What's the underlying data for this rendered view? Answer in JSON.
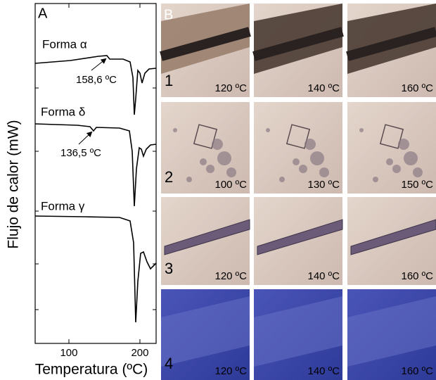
{
  "panel_a": {
    "label": "A",
    "xlabel": "Temperatura (ºC)",
    "ylabel": "Flujo de calor (mW)",
    "xlim": [
      52.5,
      222.8
    ],
    "xticks": [
      100,
      200
    ],
    "curves": [
      {
        "label": "Forma α",
        "annotation": "158,6 ºC"
      },
      {
        "label": "Forma δ",
        "annotation": "136,5 ºC"
      },
      {
        "label": "Forma γ"
      }
    ]
  },
  "panel_b": {
    "label": "B",
    "rows": [
      {
        "label": "1",
        "temperatures": [
          "120 ºC",
          "140 ºC",
          "160 ºC"
        ]
      },
      {
        "label": "2",
        "temperatures": [
          "100 ºC",
          "130 ºC",
          "150 ºC"
        ]
      },
      {
        "label": "3",
        "temperatures": [
          "120 ºC",
          "140 ºC",
          "160 ºC"
        ]
      },
      {
        "label": "4",
        "temperatures": [
          "120 ºC",
          "140 ºC",
          "160 ºC"
        ]
      }
    ]
  }
}
